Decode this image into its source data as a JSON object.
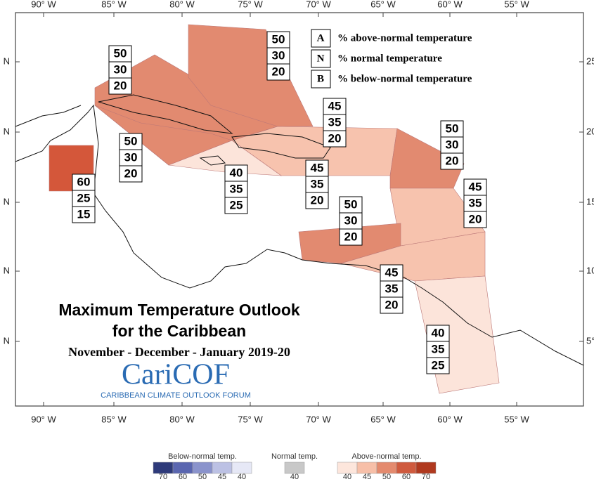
{
  "map": {
    "title": [
      "Maximum Temperature Outlook",
      "for the Caribbean"
    ],
    "period": "November - December - January 2019-20",
    "logo": {
      "name": "CariCOF",
      "subtitle": "CARIBBEAN CLIMATE OUTLOOK FORUM"
    },
    "longitude_labels": [
      "90° W",
      "85° W",
      "80° W",
      "75° W",
      "70° W",
      "65° W",
      "60° W",
      "55° W"
    ],
    "latitude_labels_left": [
      "N",
      "N",
      "N",
      "N",
      "N"
    ],
    "latitude_labels_right": [
      "25°",
      "20°",
      "15°",
      "10°",
      "5°"
    ],
    "legend": [
      {
        "key": "A",
        "text": "% above-normal temperature"
      },
      {
        "key": "N",
        "text": "% normal temperature"
      },
      {
        "key": "B",
        "text": "% below-normal temperature"
      }
    ],
    "regions": [
      {
        "A": 50,
        "N": 30,
        "B": 20,
        "color": "#e28a70"
      },
      {
        "A": 50,
        "N": 30,
        "B": 20,
        "color": "#e28a70"
      },
      {
        "A": 50,
        "N": 30,
        "B": 20,
        "color": "#e28a70"
      },
      {
        "A": 45,
        "N": 35,
        "B": 20,
        "color": "#f7c3ae"
      },
      {
        "A": 40,
        "N": 35,
        "B": 25,
        "color": "#fce4da"
      },
      {
        "A": 60,
        "N": 25,
        "B": 15,
        "color": "#d4573a"
      },
      {
        "A": 50,
        "N": 30,
        "B": 20,
        "color": "#e28a70"
      },
      {
        "A": 45,
        "N": 35,
        "B": 20,
        "color": "#f7c3ae"
      },
      {
        "A": 45,
        "N": 35,
        "B": 20,
        "color": "#f7c3ae"
      },
      {
        "A": 50,
        "N": 30,
        "B": 20,
        "color": "#e28a70"
      },
      {
        "A": 45,
        "N": 35,
        "B": 20,
        "color": "#f7c3ae"
      },
      {
        "A": 40,
        "N": 35,
        "B": 25,
        "color": "#fce4da"
      }
    ],
    "color_scale": {
      "below": {
        "label": "Below-normal temp.",
        "ticks": [
          "70",
          "60",
          "50",
          "45",
          "40"
        ],
        "colors": [
          "#2e3a7a",
          "#5a66b0",
          "#8a93cc",
          "#bcc1e4",
          "#e6e8f6"
        ]
      },
      "normal": {
        "label": "Normal temp.",
        "ticks": [
          "40"
        ],
        "colors": [
          "#c8c8c8"
        ]
      },
      "above": {
        "label": "Above-normal temp.",
        "ticks": [
          "40",
          "45",
          "50",
          "60",
          "70"
        ],
        "colors": [
          "#fde6dc",
          "#f7bfa8",
          "#e48a6e",
          "#cf5a3e",
          "#b0391f"
        ]
      }
    }
  }
}
